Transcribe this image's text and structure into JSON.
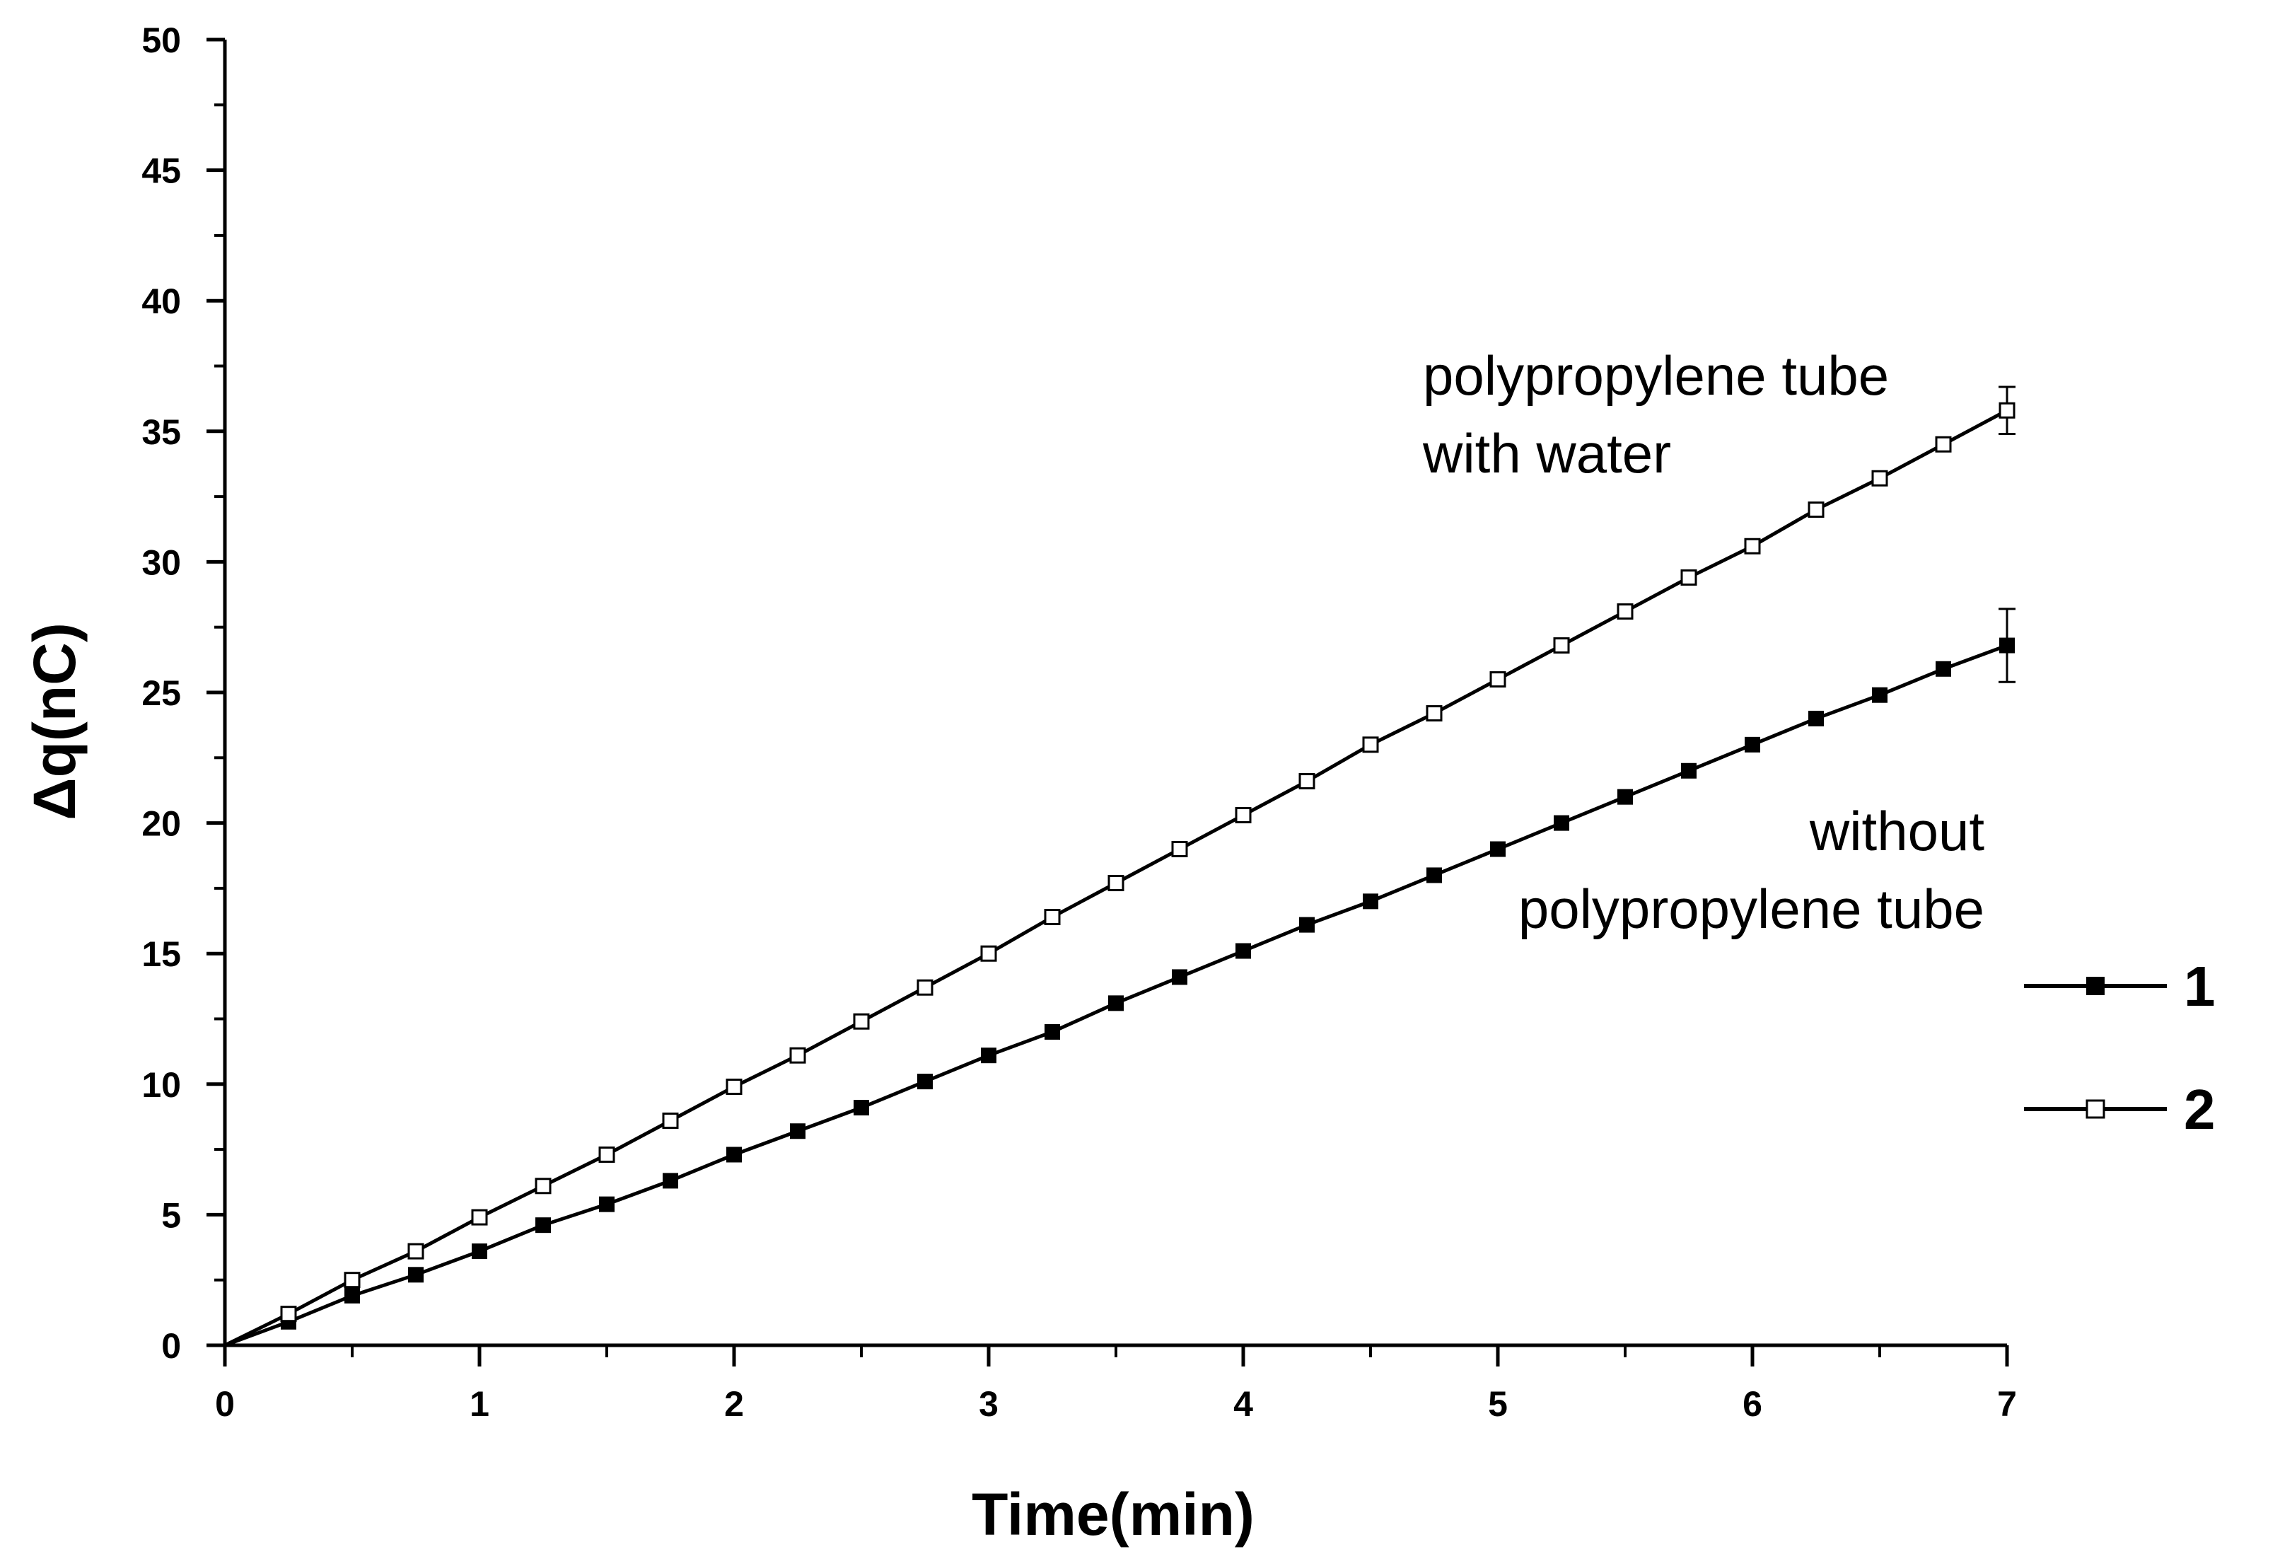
{
  "chart_data": {
    "type": "line",
    "xlabel": "Time(min)",
    "ylabel": "Δq(nC)",
    "xlim": [
      0,
      7
    ],
    "ylim": [
      0,
      50
    ],
    "xticks": [
      "0",
      "1",
      "2",
      "3",
      "4",
      "5",
      "6",
      "7"
    ],
    "yticks": [
      "0",
      "5",
      "10",
      "15",
      "20",
      "25",
      "30",
      "35",
      "40",
      "45",
      "50"
    ],
    "grid": false,
    "legend_position": "right",
    "x": [
      0,
      0.25,
      0.5,
      0.75,
      1,
      1.25,
      1.5,
      1.75,
      2,
      2.25,
      2.5,
      2.75,
      3,
      3.25,
      3.5,
      3.75,
      4,
      4.25,
      4.5,
      4.75,
      5,
      5.25,
      5.5,
      5.75,
      6,
      6.25,
      6.5,
      6.75,
      7
    ],
    "series": [
      {
        "name": "1",
        "marker": "filled-square",
        "values": [
          0,
          0.9,
          1.9,
          2.7,
          3.6,
          4.6,
          5.4,
          6.3,
          7.3,
          8.2,
          9.1,
          10.1,
          11.1,
          12.0,
          13.1,
          14.1,
          15.1,
          16.1,
          17.0,
          18.0,
          19.0,
          20.0,
          21.0,
          22.0,
          23.0,
          24.0,
          24.9,
          25.9,
          26.8
        ],
        "error_bar": {
          "x": 7,
          "low": 25.4,
          "high": 28.2
        }
      },
      {
        "name": "2",
        "marker": "open-square",
        "values": [
          0,
          1.2,
          2.5,
          3.6,
          4.9,
          6.1,
          7.3,
          8.6,
          9.9,
          11.1,
          12.4,
          13.7,
          15.0,
          16.4,
          17.7,
          19.0,
          20.3,
          21.6,
          23.0,
          24.2,
          25.5,
          26.8,
          28.1,
          29.4,
          30.6,
          32.0,
          33.2,
          34.5,
          35.8
        ],
        "error_bar": {
          "x": 7,
          "low": 34.9,
          "high": 36.7
        }
      }
    ],
    "annotations": [
      {
        "lines": [
          "polypropylene tube",
          "with water"
        ],
        "series": "2"
      },
      {
        "lines": [
          "without",
          "polypropylene tube"
        ],
        "series": "1"
      }
    ]
  },
  "colors": {
    "line": "#000000",
    "marker_fill": "#000000",
    "open_marker_fill": "#ffffff",
    "background": "#ffffff"
  }
}
